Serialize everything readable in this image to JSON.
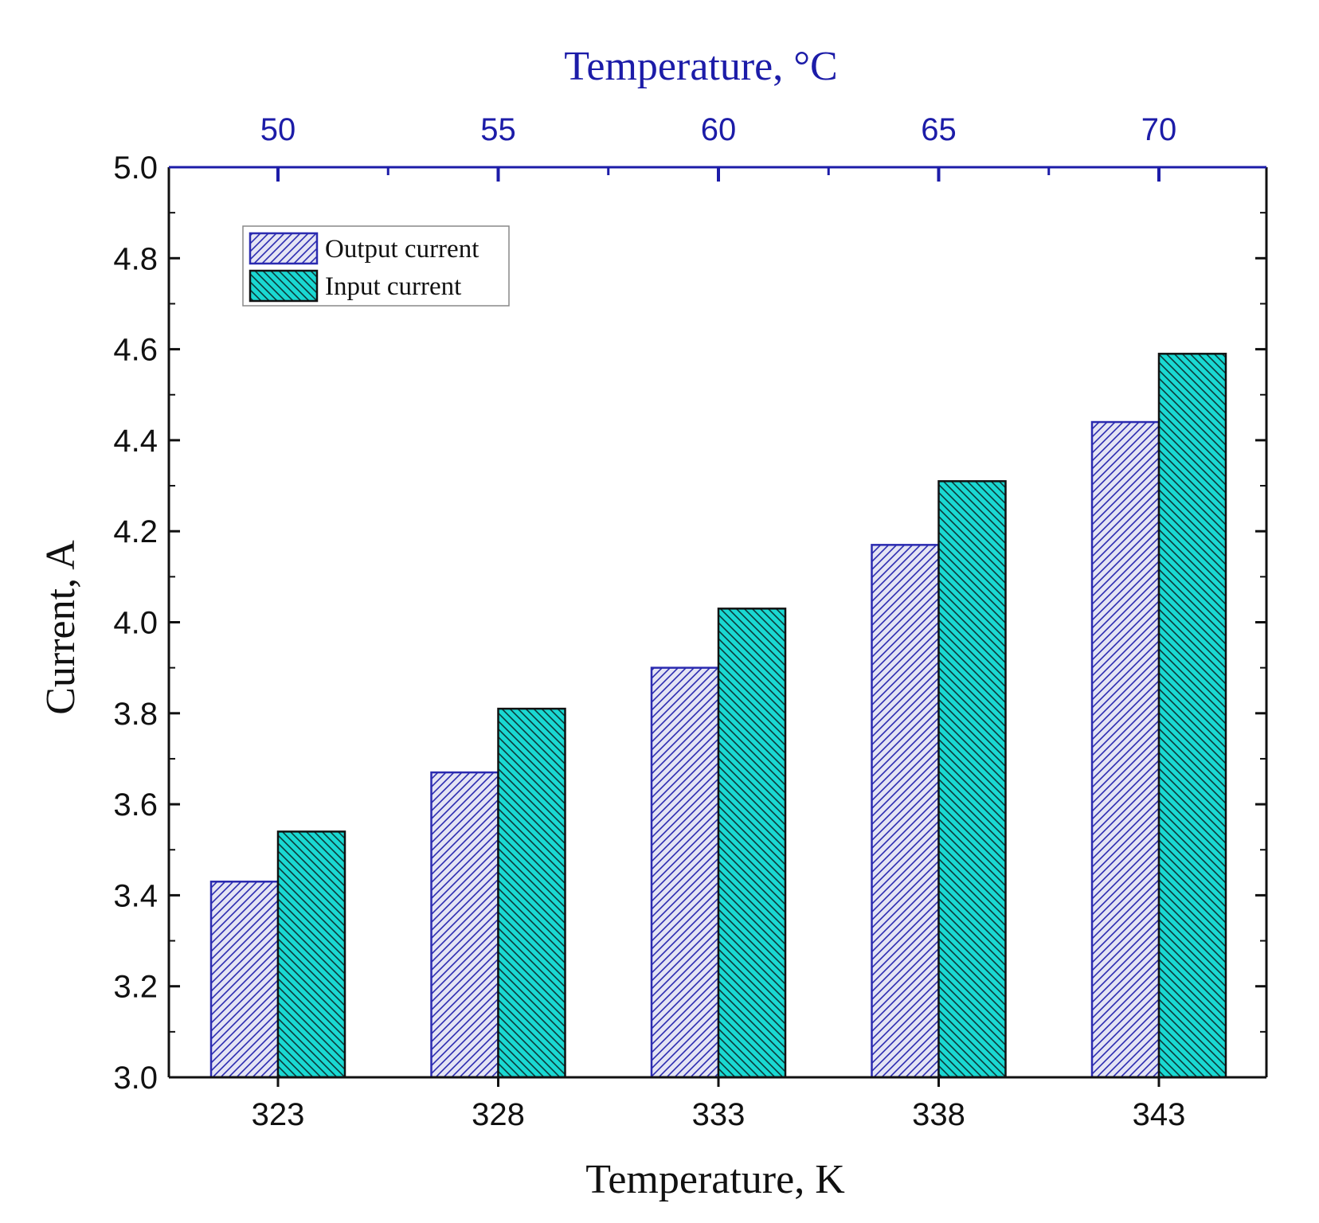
{
  "chart_data": {
    "type": "bar",
    "title": "",
    "xlabel": "Temperature, K",
    "top_xlabel": "Temperature, °C",
    "ylabel": "Current, A",
    "categories": [
      "323",
      "328",
      "333",
      "338",
      "343"
    ],
    "top_categories": [
      "50",
      "55",
      "60",
      "65",
      "70"
    ],
    "ylim": [
      3.0,
      5.0
    ],
    "yticks": [
      "3.0",
      "3.2",
      "3.4",
      "3.6",
      "3.8",
      "4.0",
      "4.2",
      "4.4",
      "4.6",
      "4.8",
      "5.0"
    ],
    "grid": false,
    "legend_position": "top-left",
    "series": [
      {
        "name": "Output current",
        "values": [
          3.43,
          3.67,
          3.9,
          4.17,
          4.44
        ],
        "fill": "#e4e4f4",
        "hatch": "#2b2bb0",
        "edge": "#2b2bb0"
      },
      {
        "name": "Input current",
        "values": [
          3.54,
          3.81,
          4.03,
          4.31,
          4.59
        ],
        "fill": "#1ad8d2",
        "hatch": "#0c3a3a",
        "edge": "#111111"
      }
    ],
    "colors": {
      "axis": "#111111",
      "top_axis": "#1c1ca8",
      "top_text": "#1c1ca8"
    }
  }
}
